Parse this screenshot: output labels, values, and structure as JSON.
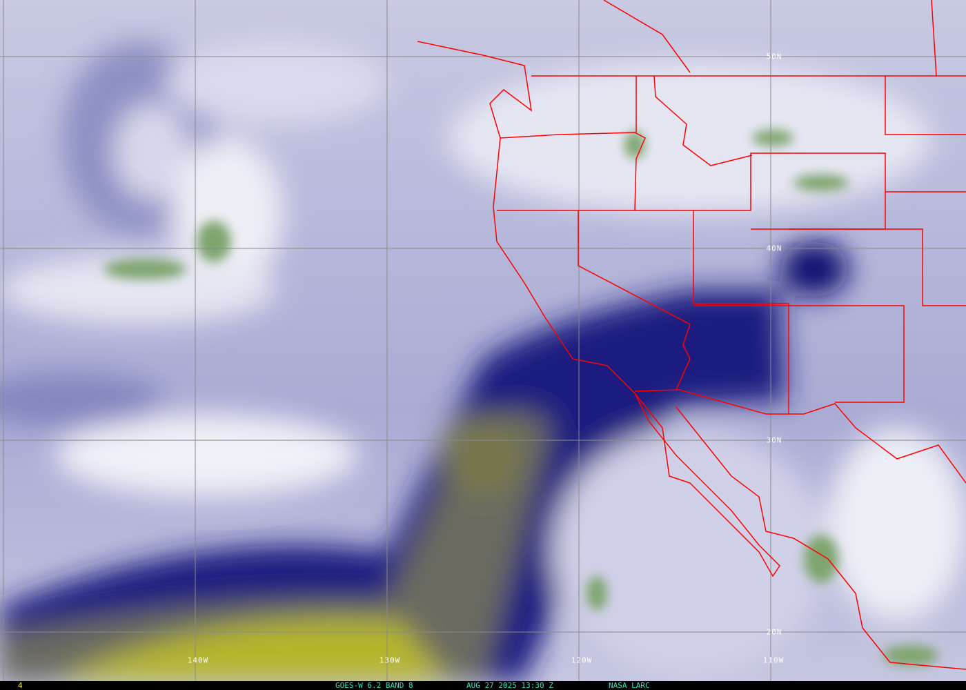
{
  "image": {
    "type": "satellite water vapor imagery",
    "colors": {
      "dry": "#b5b52a",
      "very_dry": "#000070",
      "mid": "#9a9ccc",
      "moist": "#eeeef6",
      "cloud": "#6f9a5e",
      "borders": "#ff0000",
      "grid": "#808080",
      "caption": "#30e0c0",
      "frame_number": "#ffff40"
    }
  },
  "grid": {
    "lat_labels": [
      "50N",
      "40N",
      "30N",
      "20N"
    ],
    "lon_labels": [
      "140W",
      "130W",
      "120W",
      "110W"
    ]
  },
  "caption": {
    "frame": "4",
    "satellite": "GOES-W 6.2 BAND 8",
    "datetime": "AUG 27 2025 13:30 Z",
    "source": "NASA LARC"
  }
}
